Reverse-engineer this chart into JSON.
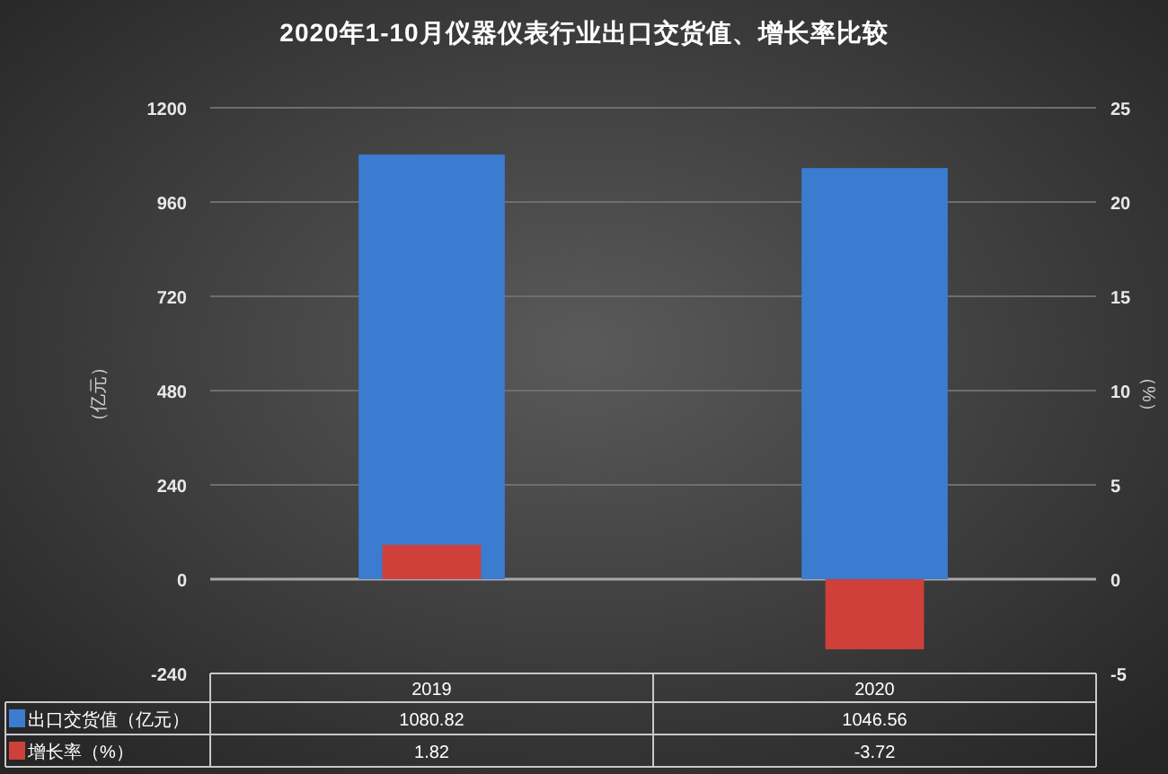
{
  "chart_data": {
    "type": "bar",
    "title": "2020年1-10月仪器仪表行业出口交货值、增长率比较",
    "categories": [
      "2019",
      "2020"
    ],
    "series": [
      {
        "name": "出口交货值（亿元）",
        "color": "#3b7bd0",
        "values": [
          1080.82,
          1046.56
        ]
      },
      {
        "name": "增长率（%）",
        "color": "#d0403a",
        "values": [
          1.82,
          -3.72
        ],
        "axis": "y2"
      }
    ],
    "ylabel": "（亿元）",
    "y2label": "（%）",
    "ylim": [
      -240,
      1200
    ],
    "yticks": [
      -240,
      0,
      240,
      480,
      720,
      960,
      1200
    ],
    "y2lim": [
      -5,
      25
    ],
    "y2ticks": [
      -5,
      0,
      5,
      10,
      15,
      20,
      25
    ],
    "grid": "y",
    "legend": "bottom",
    "data_labels": true
  }
}
